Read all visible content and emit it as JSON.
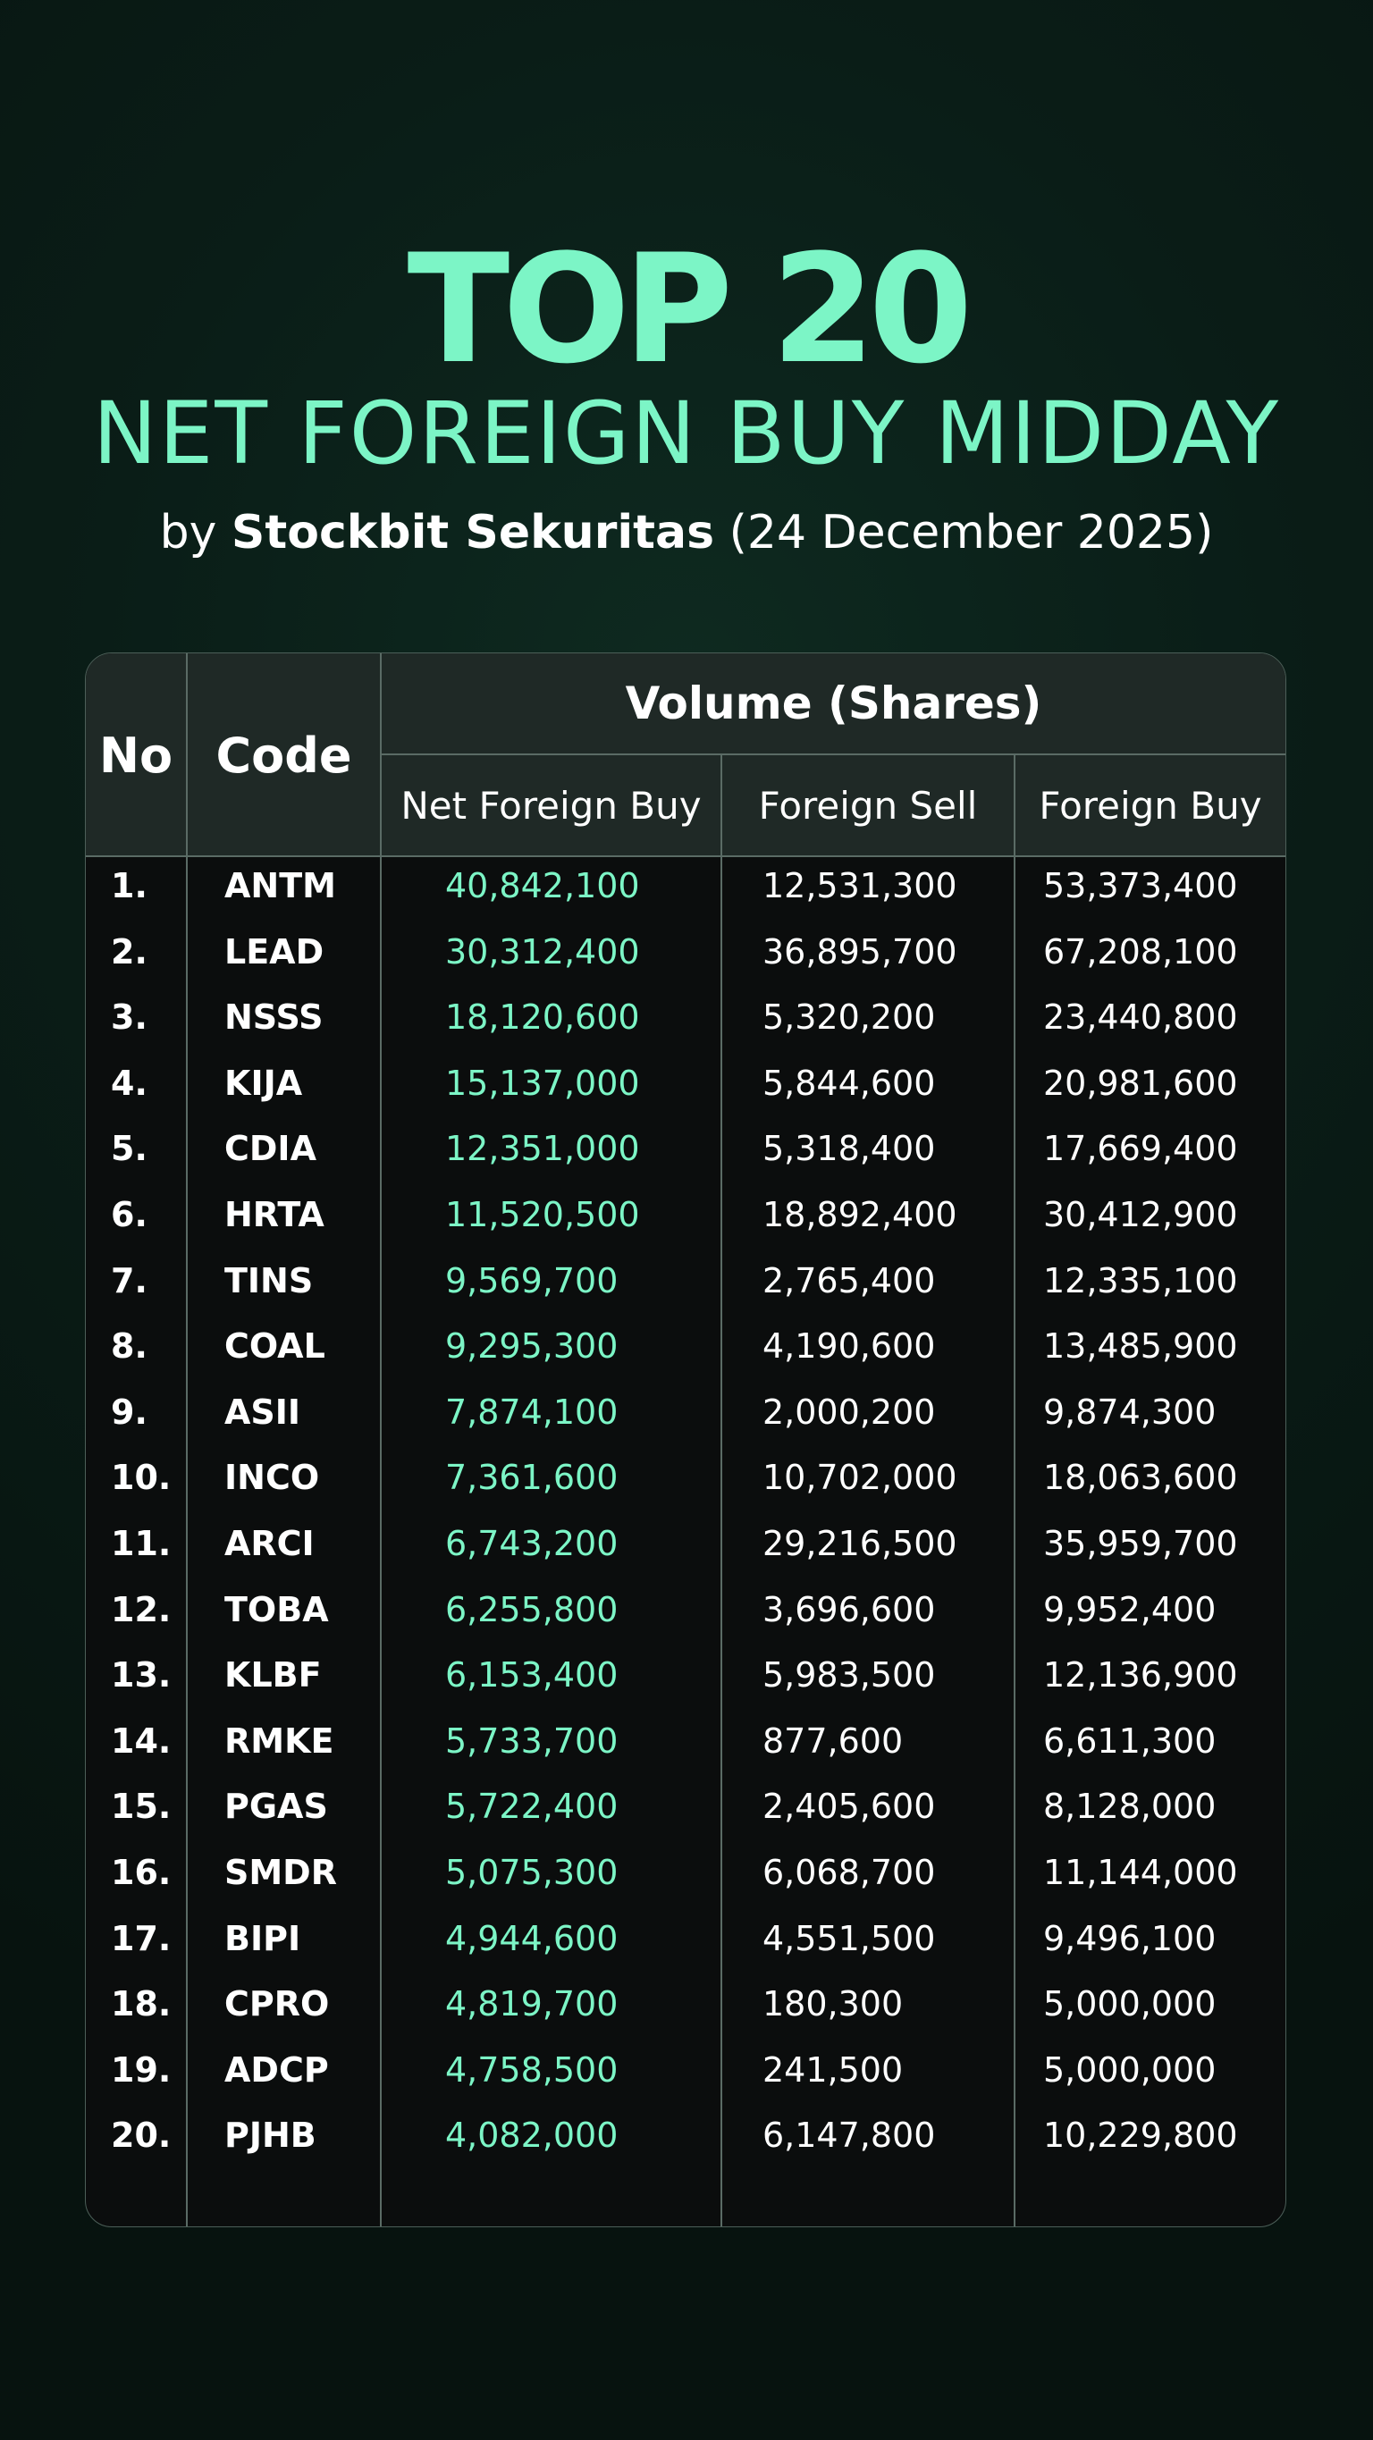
{
  "header": {
    "title": "TOP 20",
    "subtitle": "NET FOREIGN BUY MIDDAY",
    "by_prefix": "by ",
    "brand": "Stockbit Sekuritas",
    "date": " (24 December 2025)"
  },
  "table": {
    "col_no": "No",
    "col_code": "Code",
    "group_label": "Volume (Shares)",
    "col_net_foreign_buy": "Net Foreign Buy",
    "col_foreign_sell": "Foreign Sell",
    "col_foreign_buy": "Foreign Buy",
    "rows": [
      {
        "no": "1.",
        "code": "ANTM",
        "net": "40,842,100",
        "sell": "12,531,300",
        "buy": "53,373,400"
      },
      {
        "no": "2.",
        "code": "LEAD",
        "net": "30,312,400",
        "sell": "36,895,700",
        "buy": "67,208,100"
      },
      {
        "no": "3.",
        "code": "NSSS",
        "net": "18,120,600",
        "sell": "5,320,200",
        "buy": "23,440,800"
      },
      {
        "no": "4.",
        "code": "KIJA",
        "net": "15,137,000",
        "sell": "5,844,600",
        "buy": "20,981,600"
      },
      {
        "no": "5.",
        "code": "CDIA",
        "net": "12,351,000",
        "sell": "5,318,400",
        "buy": "17,669,400"
      },
      {
        "no": "6.",
        "code": "HRTA",
        "net": "11,520,500",
        "sell": "18,892,400",
        "buy": "30,412,900"
      },
      {
        "no": "7.",
        "code": "TINS",
        "net": "9,569,700",
        "sell": "2,765,400",
        "buy": "12,335,100"
      },
      {
        "no": "8.",
        "code": "COAL",
        "net": "9,295,300",
        "sell": "4,190,600",
        "buy": "13,485,900"
      },
      {
        "no": "9.",
        "code": "ASII",
        "net": "7,874,100",
        "sell": "2,000,200",
        "buy": "9,874,300"
      },
      {
        "no": "10.",
        "code": "INCO",
        "net": "7,361,600",
        "sell": "10,702,000",
        "buy": "18,063,600"
      },
      {
        "no": "11.",
        "code": "ARCI",
        "net": "6,743,200",
        "sell": "29,216,500",
        "buy": "35,959,700"
      },
      {
        "no": "12.",
        "code": "TOBA",
        "net": "6,255,800",
        "sell": "3,696,600",
        "buy": "9,952,400"
      },
      {
        "no": "13.",
        "code": "KLBF",
        "net": "6,153,400",
        "sell": "5,983,500",
        "buy": "12,136,900"
      },
      {
        "no": "14.",
        "code": "RMKE",
        "net": "5,733,700",
        "sell": "877,600",
        "buy": "6,611,300"
      },
      {
        "no": "15.",
        "code": "PGAS",
        "net": "5,722,400",
        "sell": "2,405,600",
        "buy": "8,128,000"
      },
      {
        "no": "16.",
        "code": "SMDR",
        "net": "5,075,300",
        "sell": "6,068,700",
        "buy": "11,144,000"
      },
      {
        "no": "17.",
        "code": "BIPI",
        "net": "4,944,600",
        "sell": "4,551,500",
        "buy": "9,496,100"
      },
      {
        "no": "18.",
        "code": "CPRO",
        "net": "4,819,700",
        "sell": "180,300",
        "buy": "5,000,000"
      },
      {
        "no": "19.",
        "code": "ADCP",
        "net": "4,758,500",
        "sell": "241,500",
        "buy": "5,000,000"
      },
      {
        "no": "20.",
        "code": "PJHB",
        "net": "4,082,000",
        "sell": "6,147,800",
        "buy": "10,229,800"
      }
    ]
  },
  "colors": {
    "accent": "#7cf5c6",
    "background": "#0a1d17",
    "header_bg": "#1f2926",
    "body_bg": "#0b0d0d"
  }
}
